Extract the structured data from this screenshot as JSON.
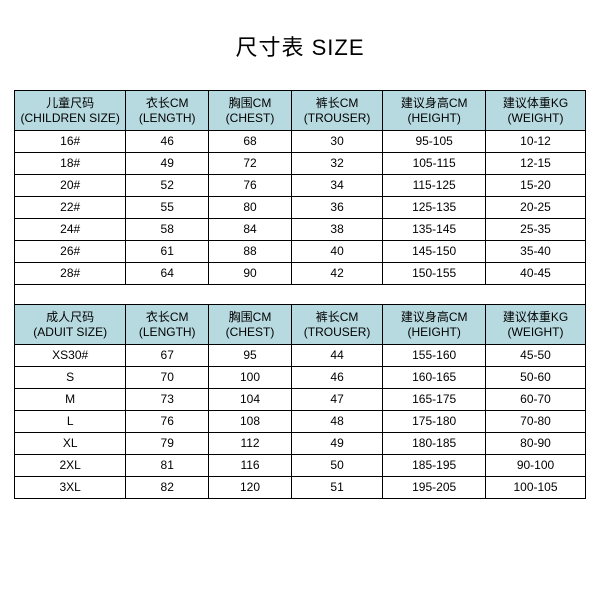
{
  "title": "尺寸表 SIZE",
  "header_bg": "#b7dae0",
  "columns": [
    {
      "line1": "儿童尺码",
      "line2": "(CHILDREN SIZE)"
    },
    {
      "line1": "衣长CM",
      "line2": "(LENGTH)"
    },
    {
      "line1": "胸围CM",
      "line2": "(CHEST)"
    },
    {
      "line1": "裤长CM",
      "line2": "(TROUSER)"
    },
    {
      "line1": "建议身高CM",
      "line2": "(HEIGHT)"
    },
    {
      "line1": "建议体重KG",
      "line2": "(WEIGHT)"
    }
  ],
  "children_rows": [
    [
      "16#",
      "46",
      "68",
      "30",
      "95-105",
      "10-12"
    ],
    [
      "18#",
      "49",
      "72",
      "32",
      "105-115",
      "12-15"
    ],
    [
      "20#",
      "52",
      "76",
      "34",
      "115-125",
      "15-20"
    ],
    [
      "22#",
      "55",
      "80",
      "36",
      "125-135",
      "20-25"
    ],
    [
      "24#",
      "58",
      "84",
      "38",
      "135-145",
      "25-35"
    ],
    [
      "26#",
      "61",
      "88",
      "40",
      "145-150",
      "35-40"
    ],
    [
      "28#",
      "64",
      "90",
      "42",
      "150-155",
      "40-45"
    ]
  ],
  "adult_columns": [
    {
      "line1": "成人尺码",
      "line2": "(ADUIT SIZE)"
    },
    {
      "line1": "衣长CM",
      "line2": "(LENGTH)"
    },
    {
      "line1": "胸围CM",
      "line2": "(CHEST)"
    },
    {
      "line1": "裤长CM",
      "line2": "(TROUSER)"
    },
    {
      "line1": "建议身高CM",
      "line2": "(HEIGHT)"
    },
    {
      "line1": "建议体重KG",
      "line2": "(WEIGHT)"
    }
  ],
  "adult_rows": [
    [
      "XS30#",
      "67",
      "95",
      "44",
      "155-160",
      "45-50"
    ],
    [
      "S",
      "70",
      "100",
      "46",
      "160-165",
      "50-60"
    ],
    [
      "M",
      "73",
      "104",
      "47",
      "165-175",
      "60-70"
    ],
    [
      "L",
      "76",
      "108",
      "48",
      "175-180",
      "70-80"
    ],
    [
      "XL",
      "79",
      "112",
      "49",
      "180-185",
      "80-90"
    ],
    [
      "2XL",
      "81",
      "116",
      "50",
      "185-195",
      "90-100"
    ],
    [
      "3XL",
      "82",
      "120",
      "51",
      "195-205",
      "100-105"
    ]
  ]
}
